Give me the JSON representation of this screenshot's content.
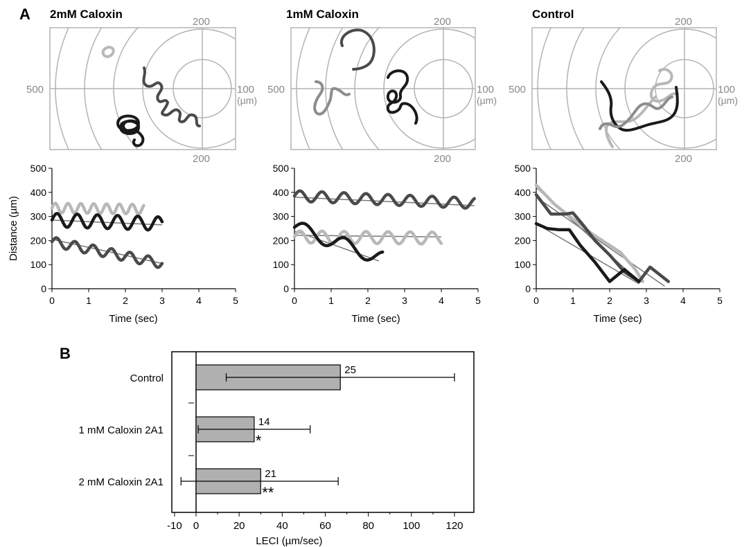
{
  "panel_a": {
    "label": "A",
    "panels": [
      {
        "title": "2mM Caloxin"
      },
      {
        "title": "1mM Caloxin"
      },
      {
        "title": "Control"
      }
    ],
    "polar_labels": {
      "top": "200",
      "bottom": "200",
      "left": "500",
      "right": "100",
      "unit": "(µm)"
    },
    "colors": {
      "black": "#1a1a1a",
      "dark": "#4a4a4a",
      "mid": "#8c8c8c",
      "light": "#b8b8b8",
      "grid": "#b3b3b3"
    }
  },
  "panel_b": {
    "label": "B"
  },
  "chart_data": [
    {
      "type": "line",
      "title": "2mM Caloxin",
      "xlabel": "Time (sec)",
      "ylabel": "Distance (µm)",
      "xlim": [
        0,
        5
      ],
      "ylim": [
        0,
        500
      ],
      "xticks": [
        "0",
        "1",
        "2",
        "3",
        "4",
        "5"
      ],
      "yticks": [
        "0",
        "100",
        "200",
        "300",
        "400",
        "500"
      ],
      "series": [
        {
          "color": "#b8b8b8",
          "x": [
            0,
            2.5
          ],
          "y": [
            335,
            330
          ],
          "wiggle_amp": 20,
          "wiggle_period": 0.35
        },
        {
          "color": "#1a1a1a",
          "x": [
            0,
            3
          ],
          "y": [
            285,
            270
          ],
          "wiggle_amp": 28,
          "wiggle_period": 0.55
        },
        {
          "color": "#4a4a4a",
          "x": [
            0,
            3
          ],
          "y": [
            195,
            105
          ],
          "wiggle_amp": 20,
          "wiggle_period": 0.5
        }
      ],
      "trend_lines": [
        {
          "x": [
            0,
            3
          ],
          "y": [
            285,
            265
          ]
        },
        {
          "x": [
            0,
            3
          ],
          "y": [
            205,
            105
          ]
        }
      ]
    },
    {
      "type": "line",
      "title": "1mM Caloxin",
      "xlabel": "Time (sec)",
      "ylabel": "Distance (µm)",
      "xlim": [
        0,
        5
      ],
      "ylim": [
        0,
        500
      ],
      "xticks": [
        "0",
        "1",
        "2",
        "3",
        "4",
        "5"
      ],
      "yticks": [
        "0",
        "100",
        "200",
        "300",
        "400",
        "500"
      ],
      "series": [
        {
          "color": "#4a4a4a",
          "x": [
            0,
            4.9
          ],
          "y": [
            385,
            355
          ],
          "wiggle_amp": 22,
          "wiggle_period": 0.6
        },
        {
          "color": "#b8b8b8",
          "x": [
            0,
            4
          ],
          "y": [
            215,
            210
          ],
          "wiggle_amp": 25,
          "wiggle_period": 0.6
        },
        {
          "color": "#1a1a1a",
          "x": [
            0,
            2.4
          ],
          "y": [
            255,
            125
          ],
          "wiggle_amp": 30,
          "wiggle_period": 1.1
        }
      ],
      "trend_lines": [
        {
          "x": [
            0,
            4.9
          ],
          "y": [
            380,
            345
          ]
        },
        {
          "x": [
            0,
            4
          ],
          "y": [
            222,
            215
          ]
        },
        {
          "x": [
            0,
            2.3
          ],
          "y": [
            240,
            115
          ]
        }
      ]
    },
    {
      "type": "line",
      "title": "Control",
      "xlabel": "Time (sec)",
      "ylabel": "Distance (µm)",
      "xlim": [
        0,
        5
      ],
      "ylim": [
        0,
        500
      ],
      "xticks": [
        "0",
        "1",
        "2",
        "3",
        "4",
        "5"
      ],
      "yticks": [
        "0",
        "100",
        "200",
        "300",
        "400",
        "500"
      ],
      "series": [
        {
          "color": "#b8b8b8",
          "points": [
            [
              0,
              430
            ],
            [
              0.5,
              350
            ],
            [
              1,
              290
            ],
            [
              1.5,
              230
            ],
            [
              1.9,
              190
            ],
            [
              2.3,
              150
            ],
            [
              2.7,
              80
            ],
            [
              2.9,
              30
            ]
          ]
        },
        {
          "color": "#4a4a4a",
          "points": [
            [
              0,
              390
            ],
            [
              0.4,
              310
            ],
            [
              0.8,
              310
            ],
            [
              1,
              315
            ],
            [
              1.3,
              260
            ],
            [
              1.6,
              200
            ],
            [
              2,
              140
            ],
            [
              2.4,
              70
            ],
            [
              2.8,
              30
            ],
            [
              3.1,
              90
            ],
            [
              3.6,
              30
            ]
          ]
        },
        {
          "color": "#1a1a1a",
          "points": [
            [
              0,
              270
            ],
            [
              0.3,
              250
            ],
            [
              0.6,
              245
            ],
            [
              0.9,
              245
            ],
            [
              1.2,
              180
            ],
            [
              1.6,
              110
            ],
            [
              2,
              30
            ],
            [
              2.4,
              80
            ],
            [
              2.8,
              30
            ]
          ]
        }
      ],
      "trend_lines": [
        {
          "x": [
            0,
            2.8
          ],
          "y": [
            420,
            30
          ]
        },
        {
          "x": [
            0,
            3.5
          ],
          "y": [
            380,
            10
          ]
        },
        {
          "x": [
            0,
            2.8
          ],
          "y": [
            270,
            20
          ]
        }
      ]
    },
    {
      "type": "bar",
      "orientation": "horizontal",
      "xlabel": "LECI (µm/sec)",
      "xlim": [
        -10,
        130
      ],
      "xticks": [
        "-10",
        "0",
        "20",
        "40",
        "60",
        "80",
        "100",
        "120"
      ],
      "categories": [
        "Control",
        "1 mM Caloxin 2A1",
        "2 mM Caloxin 2A1"
      ],
      "values": [
        67,
        27,
        30
      ],
      "error_low": [
        14,
        1,
        -7
      ],
      "error_high": [
        120,
        53,
        66
      ],
      "n_labels": [
        "25",
        "14",
        "21"
      ],
      "significance": [
        "",
        "*",
        "**"
      ],
      "bar_color": "#b0b0b0"
    }
  ]
}
